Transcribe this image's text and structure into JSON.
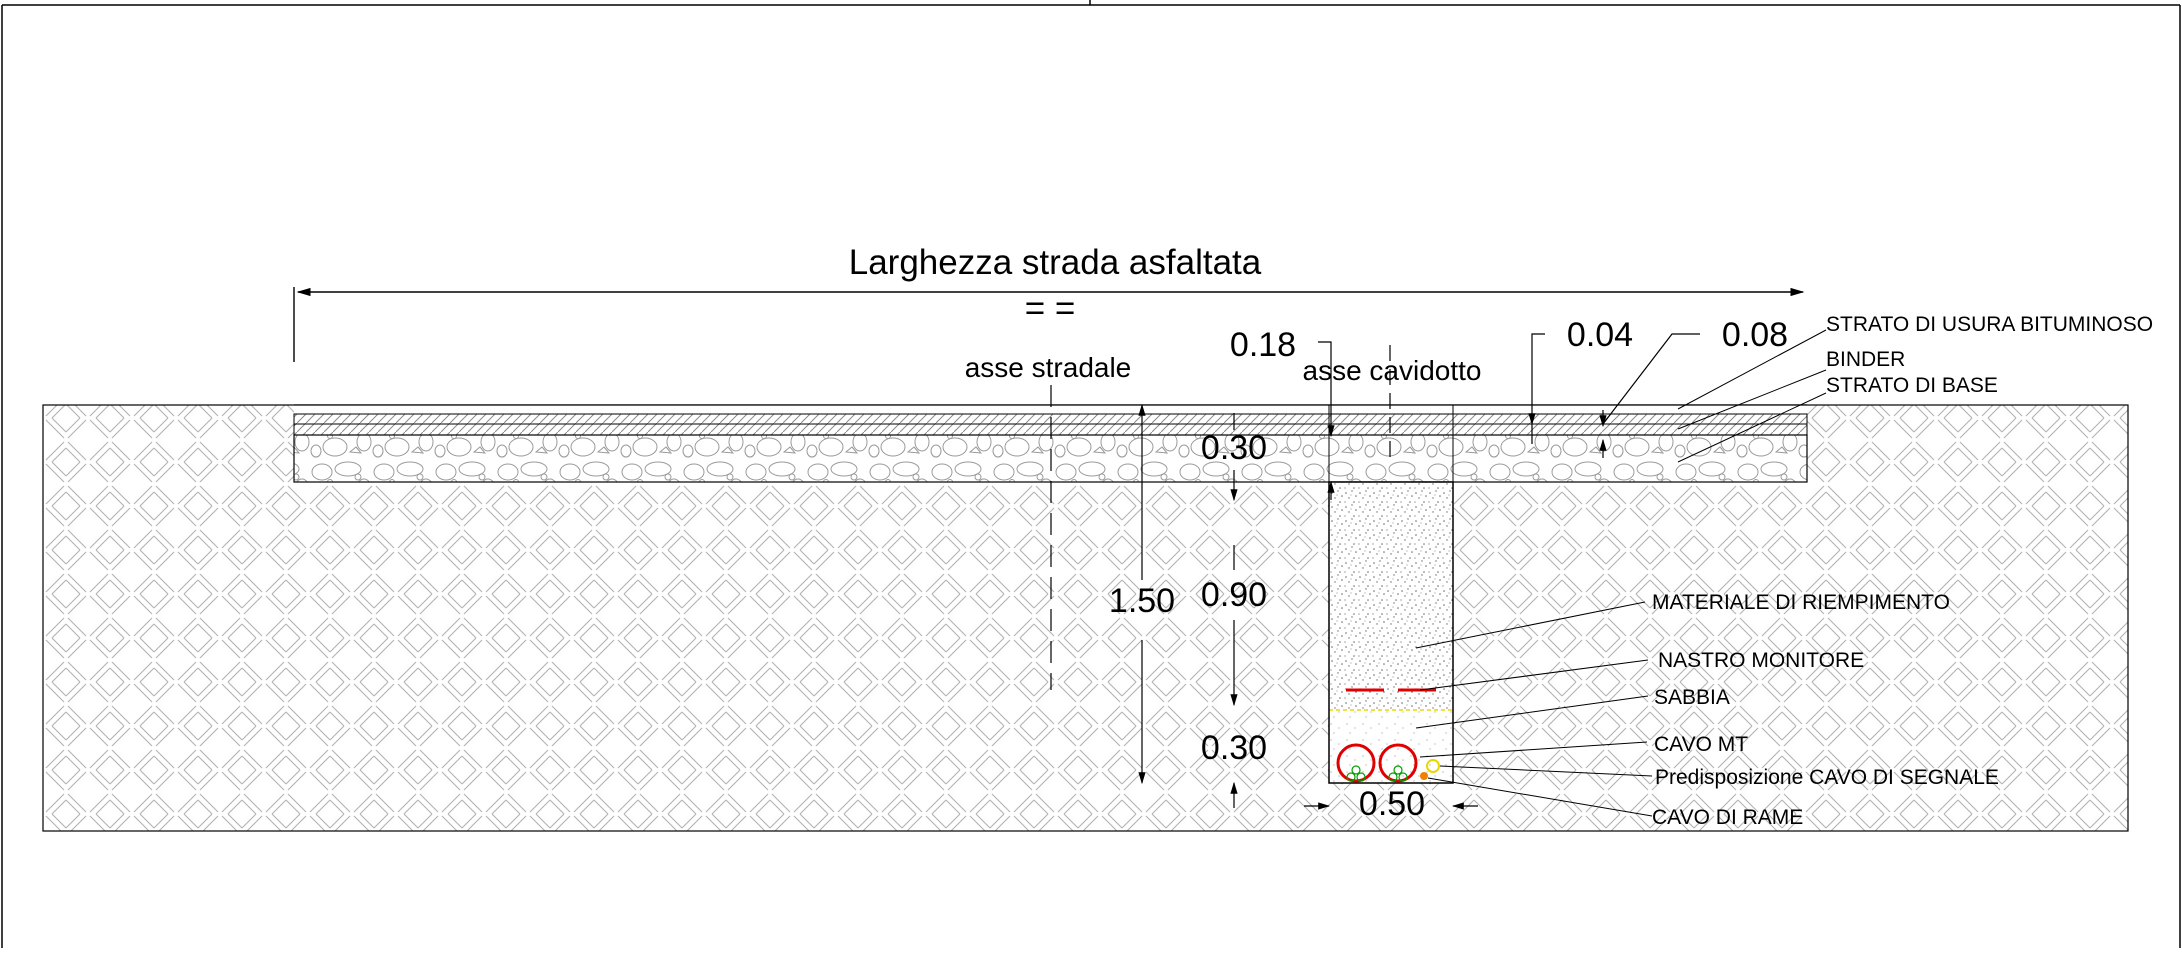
{
  "title": "Larghezza strada asfaltata",
  "title_mark": "= =",
  "axes": {
    "road": "asse stradale",
    "duct": "asse cavidotto"
  },
  "dimensions": {
    "d_018": "0.18",
    "d_004": "0.04",
    "d_008": "0.08",
    "d_030_top": "0.30",
    "d_150": "1.50",
    "d_090": "0.90",
    "d_030_bottom": "0.30",
    "d_050": "0.50"
  },
  "layers": {
    "wearing": "STRATO DI USURA BITUMINOSO",
    "binder": "BINDER",
    "base": "STRATO DI BASE"
  },
  "trench": {
    "fill": "MATERIALE DI RIEMPIMENTO",
    "tape": "NASTRO MONITORE",
    "sand": "SABBIA",
    "mv_cable": "CAVO MT",
    "signal": "Predisposizione CAVO DI SEGNALE",
    "copper": "CAVO DI RAME"
  },
  "colors": {
    "line": "#000000",
    "hatch": "#b0b0b0",
    "cable": "#e00000",
    "cable_core": "#00a000",
    "signal": "#e8d800",
    "copper": "#f08000"
  }
}
